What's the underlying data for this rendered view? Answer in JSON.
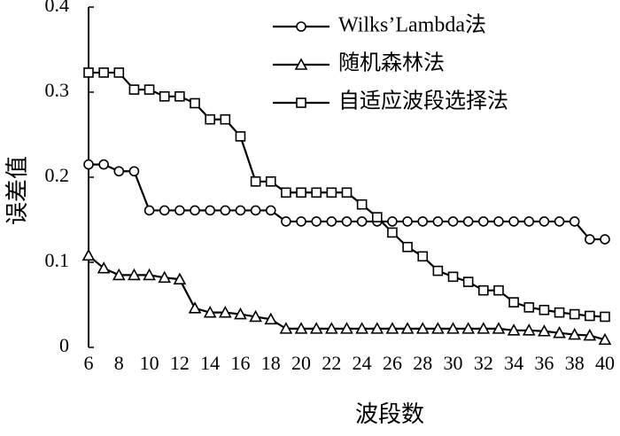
{
  "chart_data": {
    "type": "line",
    "xlabel": "波段数",
    "ylabel": "误差值",
    "x": [
      6,
      7,
      8,
      9,
      10,
      11,
      12,
      13,
      14,
      15,
      16,
      17,
      18,
      19,
      20,
      21,
      22,
      23,
      24,
      25,
      26,
      27,
      28,
      29,
      30,
      31,
      32,
      33,
      34,
      35,
      36,
      37,
      38,
      39,
      40
    ],
    "xlim": [
      6,
      40
    ],
    "xticks": [
      6,
      8,
      10,
      12,
      14,
      16,
      18,
      20,
      22,
      24,
      26,
      28,
      30,
      32,
      34,
      36,
      38,
      40
    ],
    "ylim": [
      0,
      0.4
    ],
    "yticks": [
      0,
      0.1,
      0.2,
      0.3,
      0.4
    ],
    "grid": false,
    "legend": "upper right",
    "series": [
      {
        "name": "Wilks’Lambda法",
        "color": "#000000",
        "marker": "circle",
        "values": [
          0.215,
          0.215,
          0.207,
          0.207,
          0.161,
          0.161,
          0.161,
          0.161,
          0.161,
          0.161,
          0.161,
          0.161,
          0.161,
          0.148,
          0.148,
          0.148,
          0.148,
          0.148,
          0.148,
          0.148,
          0.148,
          0.148,
          0.148,
          0.148,
          0.148,
          0.148,
          0.148,
          0.148,
          0.148,
          0.148,
          0.148,
          0.148,
          0.148,
          0.127,
          0.127
        ]
      },
      {
        "name": "随机森林法",
        "color": "#000000",
        "marker": "triangle",
        "values": [
          0.108,
          0.093,
          0.085,
          0.085,
          0.085,
          0.082,
          0.08,
          0.046,
          0.041,
          0.041,
          0.039,
          0.036,
          0.033,
          0.022,
          0.022,
          0.022,
          0.022,
          0.022,
          0.022,
          0.022,
          0.022,
          0.022,
          0.022,
          0.022,
          0.022,
          0.022,
          0.022,
          0.022,
          0.02,
          0.02,
          0.019,
          0.017,
          0.015,
          0.014,
          0.009
        ]
      },
      {
        "name": "自适应波段选择法",
        "color": "#000000",
        "marker": "square",
        "values": [
          0.323,
          0.323,
          0.323,
          0.303,
          0.303,
          0.295,
          0.295,
          0.287,
          0.268,
          0.268,
          0.248,
          0.195,
          0.195,
          0.182,
          0.182,
          0.182,
          0.182,
          0.182,
          0.168,
          0.153,
          0.135,
          0.118,
          0.107,
          0.09,
          0.083,
          0.077,
          0.067,
          0.067,
          0.053,
          0.047,
          0.044,
          0.041,
          0.039,
          0.037,
          0.036
        ]
      }
    ]
  }
}
